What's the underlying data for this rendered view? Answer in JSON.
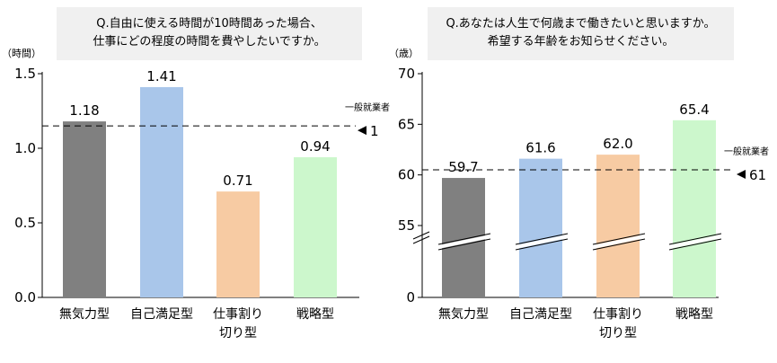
{
  "chart_data": [
    {
      "type": "bar",
      "title_lines": [
        "Q.自由に使える時間が10時間あった場合、",
        "仕事にどの程度の時間を費やしたいですか。"
      ],
      "unit_label": "（時間）",
      "categories": [
        [
          "無気力型"
        ],
        [
          "自己満足型"
        ],
        [
          "仕事割り",
          "切り型"
        ],
        [
          "戦略型"
        ]
      ],
      "values": [
        1.18,
        1.41,
        0.71,
        0.94
      ],
      "value_labels": [
        "1.18",
        "1.41",
        "0.71",
        "0.94"
      ],
      "colors": [
        "#808080",
        "#a9c6ea",
        "#f7cba3",
        "#ccf7cc"
      ],
      "ylim": [
        0,
        1.5
      ],
      "yticks": [
        0,
        0.5,
        1.0,
        1.5
      ],
      "ytick_labels": [
        "0.0",
        "0.5",
        "1.0",
        "1.5"
      ],
      "reference": {
        "label": "一般就業者",
        "value": 1.15,
        "value_label": "1"
      },
      "axis_break": false
    },
    {
      "type": "bar",
      "title_lines": [
        "Q.あなたは人生で何歳まで働きたいと思いますか。",
        "希望する年齢をお知らせください。"
      ],
      "unit_label": "（歳）",
      "categories": [
        [
          "無気力型"
        ],
        [
          "自己満足型"
        ],
        [
          "仕事割り",
          "切り型"
        ],
        [
          "戦略型"
        ]
      ],
      "values": [
        59.7,
        61.6,
        62.0,
        65.4
      ],
      "value_labels": [
        "59.7",
        "61.6",
        "62.0",
        "65.4"
      ],
      "colors": [
        "#808080",
        "#a9c6ea",
        "#f7cba3",
        "#ccf7cc"
      ],
      "ylim": [
        0,
        70
      ],
      "yticks": [
        0,
        55,
        60,
        65,
        70
      ],
      "ytick_labels": [
        "0",
        "55",
        "60",
        "65",
        "70"
      ],
      "reference": {
        "label": "一般就業者",
        "value": 60.5,
        "value_label": "61"
      },
      "axis_break": true,
      "break_range": [
        45,
        52
      ]
    }
  ]
}
